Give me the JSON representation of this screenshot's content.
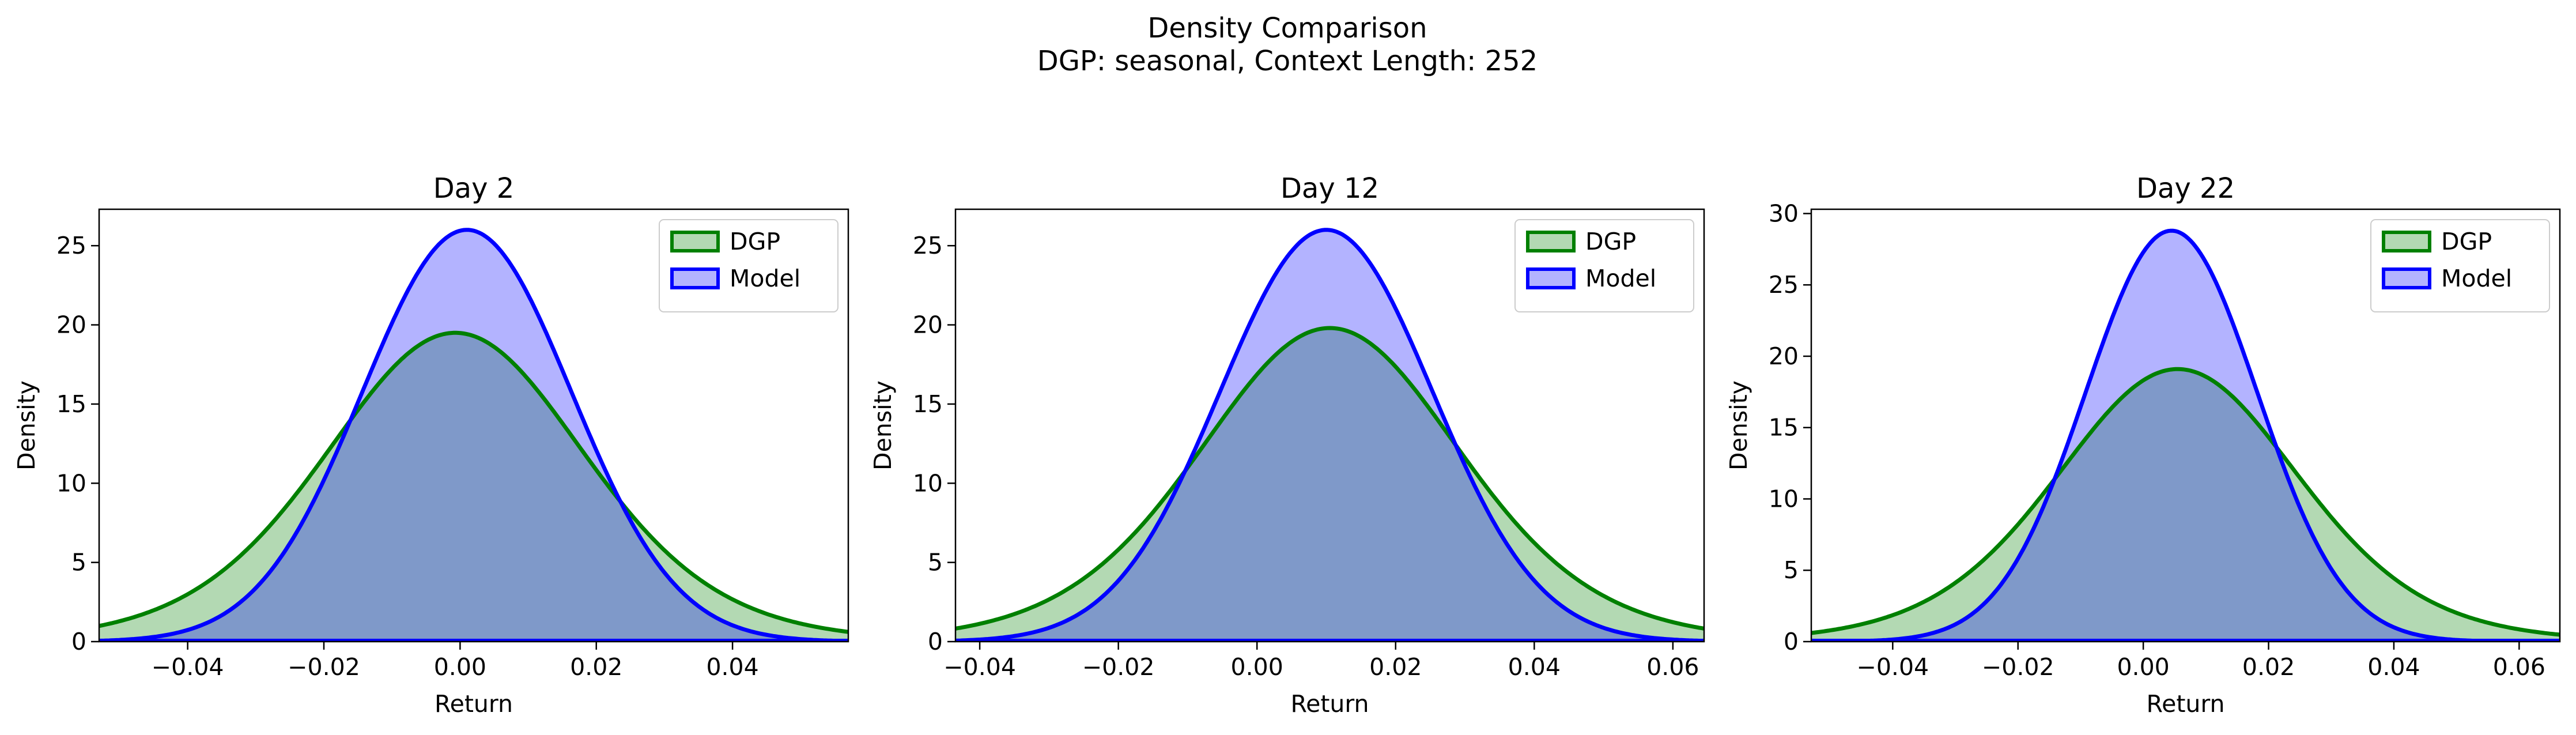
{
  "figure": {
    "title_line1": "Density Comparison",
    "title_line2": "DGP: seasonal, Context Length: 252"
  },
  "colors": {
    "dgp_line": "#008000",
    "dgp_fill": "#b3d9b3",
    "model_line": "#0000ff",
    "model_fill": "#b3b3ff",
    "overlap_fill": "#7f99c9"
  },
  "chart_data": [
    {
      "type": "area",
      "title": "Day 2",
      "xlabel": "Return",
      "ylabel": "Density",
      "xlim": [
        -0.053,
        0.057
      ],
      "ylim": [
        0,
        27.3
      ],
      "xticks": [
        -0.04,
        -0.02,
        0.0,
        0.02,
        0.04
      ],
      "xtick_labels": [
        "−0.04",
        "−0.02",
        "0.00",
        "0.02",
        "0.04"
      ],
      "yticks": [
        0,
        5,
        10,
        15,
        20,
        25
      ],
      "ytick_labels": [
        "0",
        "5",
        "10",
        "15",
        "20",
        "25"
      ],
      "legend_position": "upper right",
      "series": [
        {
          "name": "DGP",
          "kind": "t-density",
          "mu": -0.0007,
          "peak": 19.5,
          "sigma": 0.0195,
          "df": 10
        },
        {
          "name": "Model",
          "kind": "gaussian",
          "mu": 0.001,
          "peak": 26.0,
          "sigma": 0.01535
        }
      ]
    },
    {
      "type": "area",
      "title": "Day 12",
      "xlabel": "Return",
      "ylabel": "Density",
      "xlim": [
        -0.0435,
        0.0645
      ],
      "ylim": [
        0,
        27.3
      ],
      "xticks": [
        -0.04,
        -0.02,
        0.0,
        0.02,
        0.04,
        0.06
      ],
      "xtick_labels": [
        "−0.04",
        "−0.02",
        "0.00",
        "0.02",
        "0.04",
        "0.06"
      ],
      "yticks": [
        0,
        5,
        10,
        15,
        20,
        25
      ],
      "ytick_labels": [
        "0",
        "5",
        "10",
        "15",
        "20",
        "25"
      ],
      "legend_position": "upper right",
      "series": [
        {
          "name": "DGP",
          "kind": "t-density",
          "mu": 0.0105,
          "peak": 19.8,
          "sigma": 0.0193,
          "df": 10
        },
        {
          "name": "Model",
          "kind": "gaussian",
          "mu": 0.01,
          "peak": 26.0,
          "sigma": 0.01535
        }
      ]
    },
    {
      "type": "area",
      "title": "Day 22",
      "xlabel": "Return",
      "ylabel": "Density",
      "xlim": [
        -0.053,
        0.0665
      ],
      "ylim": [
        0,
        30.3
      ],
      "xticks": [
        -0.04,
        -0.02,
        0.0,
        0.02,
        0.04,
        0.06
      ],
      "xtick_labels": [
        "−0.04",
        "−0.02",
        "0.00",
        "0.02",
        "0.04",
        "0.06"
      ],
      "yticks": [
        0,
        5,
        10,
        15,
        20,
        25,
        30
      ],
      "ytick_labels": [
        "0",
        "5",
        "10",
        "15",
        "20",
        "25",
        "30"
      ],
      "legend_position": "upper right",
      "series": [
        {
          "name": "DGP",
          "kind": "t-density",
          "mu": 0.0055,
          "peak": 19.1,
          "sigma": 0.0198,
          "df": 10
        },
        {
          "name": "Model",
          "kind": "gaussian",
          "mu": 0.0045,
          "peak": 28.8,
          "sigma": 0.0137
        }
      ]
    }
  ]
}
